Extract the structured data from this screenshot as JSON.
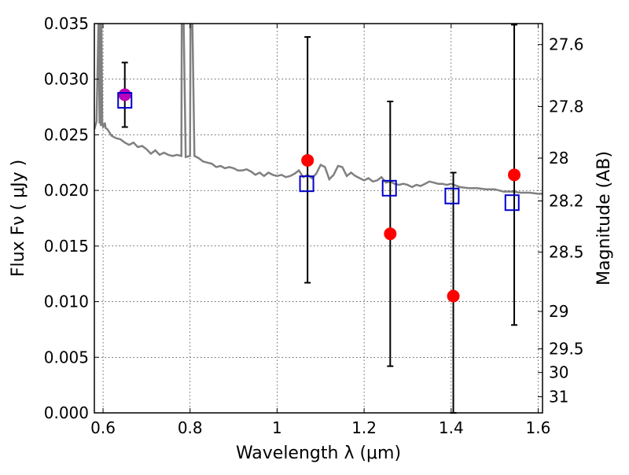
{
  "chart_data": {
    "type": "scatter",
    "xlabel": "Wavelength  λ (μm)",
    "ylabel": "Flux  Fν  ( μJy )",
    "ylabel_right": "Magnitude (AB)",
    "xlim": [
      0.58,
      1.61
    ],
    "ylim": [
      0.0,
      0.035
    ],
    "grid": true,
    "x_ticks": [
      {
        "value": 0.6,
        "label": "0.6"
      },
      {
        "value": 0.8,
        "label": "0.8"
      },
      {
        "value": 1.0,
        "label": "1"
      },
      {
        "value": 1.2,
        "label": "1.2"
      },
      {
        "value": 1.4,
        "label": "1.4"
      },
      {
        "value": 1.6,
        "label": "1.6"
      }
    ],
    "y_ticks": [
      {
        "value": 0.0,
        "label": "0.000"
      },
      {
        "value": 0.005,
        "label": "0.005"
      },
      {
        "value": 0.01,
        "label": "0.010"
      },
      {
        "value": 0.015,
        "label": "0.015"
      },
      {
        "value": 0.02,
        "label": "0.020"
      },
      {
        "value": 0.025,
        "label": "0.025"
      },
      {
        "value": 0.03,
        "label": "0.030"
      },
      {
        "value": 0.035,
        "label": "0.035"
      }
    ],
    "right_ticks": [
      {
        "mag": 27.6,
        "label": "27.6"
      },
      {
        "mag": 27.8,
        "label": "27.8"
      },
      {
        "mag": 28.0,
        "label": "28"
      },
      {
        "mag": 28.2,
        "label": "28.2"
      },
      {
        "mag": 28.5,
        "label": "28.5"
      },
      {
        "mag": 29.0,
        "label": "29"
      },
      {
        "mag": 29.5,
        "label": "29.5"
      },
      {
        "mag": 30.0,
        "label": "30"
      },
      {
        "mag": 31.0,
        "label": "31"
      }
    ],
    "model_spectrum": {
      "color": "#808080",
      "x": [
        0.58,
        0.585,
        0.59,
        0.592,
        0.594,
        0.595,
        0.596,
        0.598,
        0.6,
        0.602,
        0.604,
        0.606,
        0.61,
        0.62,
        0.63,
        0.64,
        0.65,
        0.66,
        0.67,
        0.68,
        0.69,
        0.7,
        0.71,
        0.72,
        0.73,
        0.74,
        0.75,
        0.76,
        0.77,
        0.78,
        0.781,
        0.785,
        0.79,
        0.8,
        0.801,
        0.805,
        0.81,
        0.82,
        0.83,
        0.84,
        0.85,
        0.86,
        0.87,
        0.88,
        0.89,
        0.9,
        0.91,
        0.92,
        0.93,
        0.94,
        0.95,
        0.96,
        0.97,
        0.98,
        0.99,
        1.0,
        1.01,
        1.02,
        1.03,
        1.04,
        1.05,
        1.06,
        1.07,
        1.08,
        1.09,
        1.1,
        1.11,
        1.12,
        1.13,
        1.14,
        1.15,
        1.16,
        1.17,
        1.18,
        1.19,
        1.2,
        1.21,
        1.22,
        1.23,
        1.24,
        1.25,
        1.26,
        1.27,
        1.28,
        1.29,
        1.3,
        1.31,
        1.32,
        1.33,
        1.34,
        1.35,
        1.36,
        1.37,
        1.38,
        1.39,
        1.4,
        1.42,
        1.44,
        1.46,
        1.48,
        1.5,
        1.52,
        1.54,
        1.56,
        1.58,
        1.6,
        1.61
      ],
      "y": [
        0.0255,
        0.0262,
        0.036,
        0.026,
        0.036,
        0.0258,
        0.036,
        0.026,
        0.0257,
        0.0258,
        0.0261,
        0.0256,
        0.0255,
        0.0249,
        0.0247,
        0.0246,
        0.0243,
        0.0241,
        0.0243,
        0.0239,
        0.024,
        0.0237,
        0.0233,
        0.0236,
        0.0232,
        0.0234,
        0.0232,
        0.0231,
        0.0232,
        0.0231,
        0.036,
        0.036,
        0.023,
        0.0231,
        0.036,
        0.036,
        0.0231,
        0.0229,
        0.0226,
        0.0225,
        0.0224,
        0.0221,
        0.0222,
        0.022,
        0.0221,
        0.022,
        0.0218,
        0.0218,
        0.0219,
        0.0217,
        0.0214,
        0.0216,
        0.0213,
        0.0216,
        0.0214,
        0.0213,
        0.0214,
        0.0212,
        0.0213,
        0.0215,
        0.0218,
        0.0212,
        0.0214,
        0.0211,
        0.0215,
        0.0223,
        0.0221,
        0.021,
        0.0214,
        0.0222,
        0.0221,
        0.0213,
        0.0216,
        0.0213,
        0.0211,
        0.0209,
        0.0211,
        0.0208,
        0.0209,
        0.0212,
        0.0207,
        0.0208,
        0.0206,
        0.0205,
        0.0206,
        0.0205,
        0.0203,
        0.0205,
        0.0204,
        0.0206,
        0.0208,
        0.0207,
        0.0206,
        0.0206,
        0.0205,
        0.0206,
        0.0203,
        0.0202,
        0.0202,
        0.0201,
        0.0201,
        0.0199,
        0.0199,
        0.0198,
        0.0198,
        0.0197,
        0.0197
      ]
    },
    "model_photometry": {
      "color": "#0000cc",
      "x": [
        0.65,
        1.068,
        1.258,
        1.402,
        1.54
      ],
      "y": [
        0.0281,
        0.0206,
        0.0202,
        0.0195,
        0.0189
      ]
    },
    "observed": {
      "color": "#ff0000",
      "x": [
        0.65,
        1.07,
        1.26,
        1.405,
        1.545
      ],
      "y": [
        0.0286,
        0.0227,
        0.0161,
        0.0105,
        0.0214
      ],
      "yerr_low": [
        0.0257,
        0.0117,
        0.0042,
        0.0,
        0.0079
      ],
      "yerr_high": [
        0.0315,
        0.0338,
        0.028,
        0.0216,
        0.0349
      ]
    },
    "highlight_point": {
      "x": 0.65,
      "y": 0.0286,
      "color": "#bb00bb"
    }
  }
}
